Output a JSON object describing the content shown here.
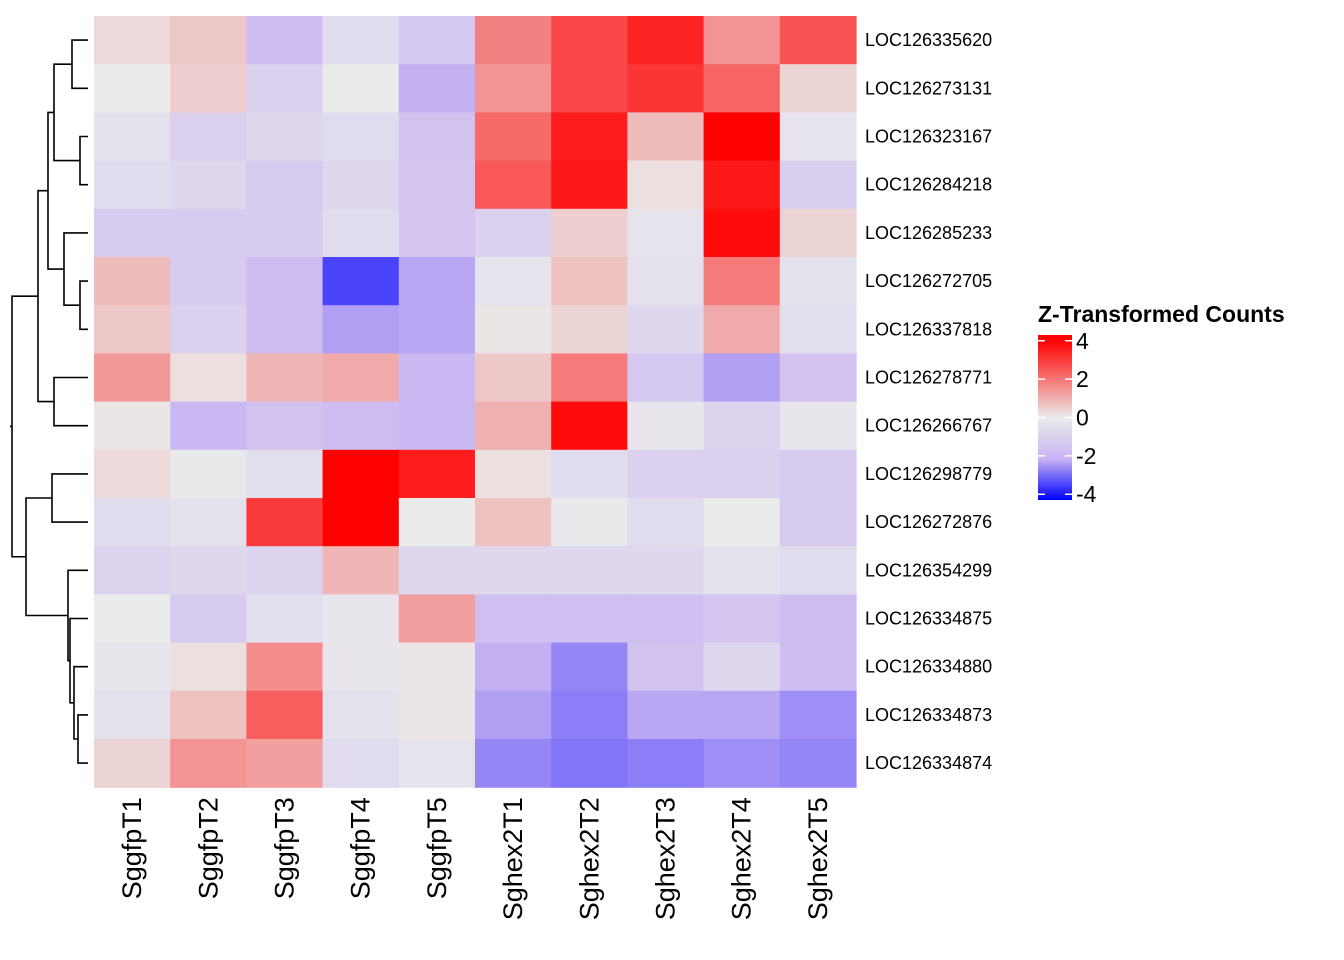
{
  "chart_data": {
    "type": "heatmap",
    "title": "",
    "columns": [
      "SggfpT1",
      "SggfpT2",
      "SggfpT3",
      "SggfpT4",
      "SggfpT5",
      "Sghex2T1",
      "Sghex2T2",
      "Sghex2T3",
      "Sghex2T4",
      "Sghex2T5"
    ],
    "rows": [
      "LOC126335620",
      "LOC126273131",
      "LOC126323167",
      "LOC126284218",
      "LOC126285233",
      "LOC126272705",
      "LOC126337818",
      "LOC126278771",
      "LOC126266767",
      "LOC126298779",
      "LOC126272876",
      "LOC126354299",
      "LOC126334875",
      "LOC126334880",
      "LOC126334873",
      "LOC126334874"
    ],
    "values": [
      [
        0.3,
        0.6,
        -1.8,
        -0.6,
        -1.4,
        1.8,
        2.8,
        3.4,
        1.5,
        2.6
      ],
      [
        0.0,
        0.5,
        -1.0,
        0.0,
        -2.2,
        1.5,
        2.8,
        3.1,
        2.3,
        0.4
      ],
      [
        -0.4,
        -1.0,
        -0.8,
        -0.6,
        -1.6,
        2.2,
        3.5,
        0.8,
        4.0,
        -0.3
      ],
      [
        -0.6,
        -0.8,
        -1.3,
        -0.8,
        -1.5,
        2.5,
        3.6,
        0.2,
        3.6,
        -1.1
      ],
      [
        -1.2,
        -1.2,
        -1.2,
        -0.6,
        -1.5,
        -1.0,
        0.5,
        -0.3,
        3.8,
        0.4
      ],
      [
        0.8,
        -1.2,
        -1.8,
        -3.5,
        -2.3,
        -0.3,
        0.7,
        -0.4,
        1.9,
        -0.4
      ],
      [
        0.6,
        -1.0,
        -1.8,
        -2.4,
        -2.3,
        0.1,
        0.4,
        -0.8,
        1.1,
        -0.5
      ],
      [
        1.4,
        0.2,
        0.9,
        1.1,
        -2.0,
        0.6,
        1.9,
        -1.4,
        -2.4,
        -1.6
      ],
      [
        0.1,
        -2.0,
        -1.6,
        -1.8,
        -2.0,
        1.0,
        3.8,
        -0.2,
        -0.9,
        -0.2
      ],
      [
        0.3,
        -0.1,
        -0.5,
        4.0,
        3.5,
        0.2,
        -0.6,
        -1.0,
        -1.0,
        -1.3
      ],
      [
        -0.6,
        -0.4,
        3.0,
        4.0,
        0.0,
        0.7,
        -0.1,
        -0.6,
        0.0,
        -1.3
      ],
      [
        -0.9,
        -0.8,
        -0.9,
        0.9,
        -0.8,
        -0.8,
        -0.8,
        -0.8,
        -0.4,
        -0.6
      ],
      [
        0.0,
        -1.2,
        -0.5,
        -0.2,
        1.3,
        -1.7,
        -1.7,
        -1.7,
        -1.5,
        -1.8
      ],
      [
        -0.2,
        0.2,
        1.6,
        -0.2,
        0.1,
        -2.2,
        -2.7,
        -1.6,
        -0.8,
        -1.8
      ],
      [
        -0.4,
        0.7,
        2.4,
        -0.4,
        0.1,
        -2.4,
        -2.8,
        -2.3,
        -2.3,
        -2.6
      ],
      [
        0.4,
        1.5,
        1.3,
        -0.6,
        -0.3,
        -2.7,
        -2.9,
        -2.8,
        -2.6,
        -2.7
      ]
    ],
    "legend": {
      "title": "Z-Transformed Counts",
      "ticks": [
        "4",
        "2",
        "0",
        "-2",
        "-4"
      ],
      "tick_values": [
        4,
        2,
        0,
        -2,
        -4
      ],
      "range": [
        -4.3,
        4.3
      ],
      "position": "right",
      "color_high": "#ff0000",
      "color_mid": "#ebebeb",
      "color_mid_purple": "#c8b4f2",
      "color_low": "#0000ff"
    },
    "row_dendrogram": true,
    "grid": false
  }
}
